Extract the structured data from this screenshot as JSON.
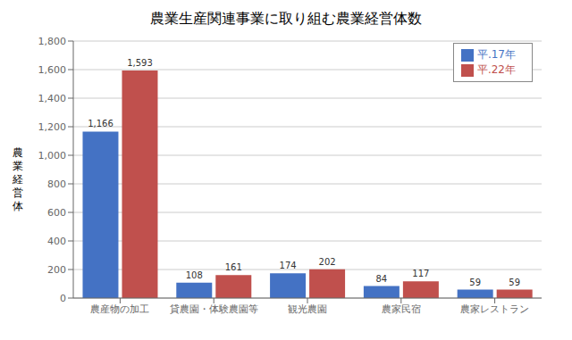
{
  "chart_data": {
    "type": "bar",
    "title": "農業生産関連事業に取り組む農業経営体数",
    "categories": [
      "農産物の加工",
      "貸農園・体験農園等",
      "観光農園",
      "農家民宿",
      "農家レストラン"
    ],
    "series": [
      {
        "name": "平.17年",
        "color": "#4472c4",
        "values": [
          1166,
          108,
          174,
          84,
          59
        ],
        "value_labels": [
          "1,166",
          "108",
          "174",
          "84",
          "59"
        ]
      },
      {
        "name": "平.22年",
        "color": "#c0504d",
        "values": [
          1593,
          161,
          202,
          117,
          59
        ],
        "value_labels": [
          "1,593",
          "161",
          "202",
          "117",
          "59"
        ]
      }
    ],
    "ylabel": "農\n業\n経\n営\n体",
    "ylim": [
      0,
      1800
    ],
    "yticks": [
      0,
      200,
      400,
      600,
      800,
      {
        "value": 1000,
        "label": "1,000"
      },
      {
        "value": 1200,
        "label": "1,200"
      },
      {
        "value": 1400,
        "label": "1,400"
      },
      {
        "value": 1600,
        "label": "1,600"
      },
      {
        "value": 1800,
        "label": "1,800"
      }
    ],
    "grid": true,
    "legend": "upper right",
    "data_labels": true
  }
}
